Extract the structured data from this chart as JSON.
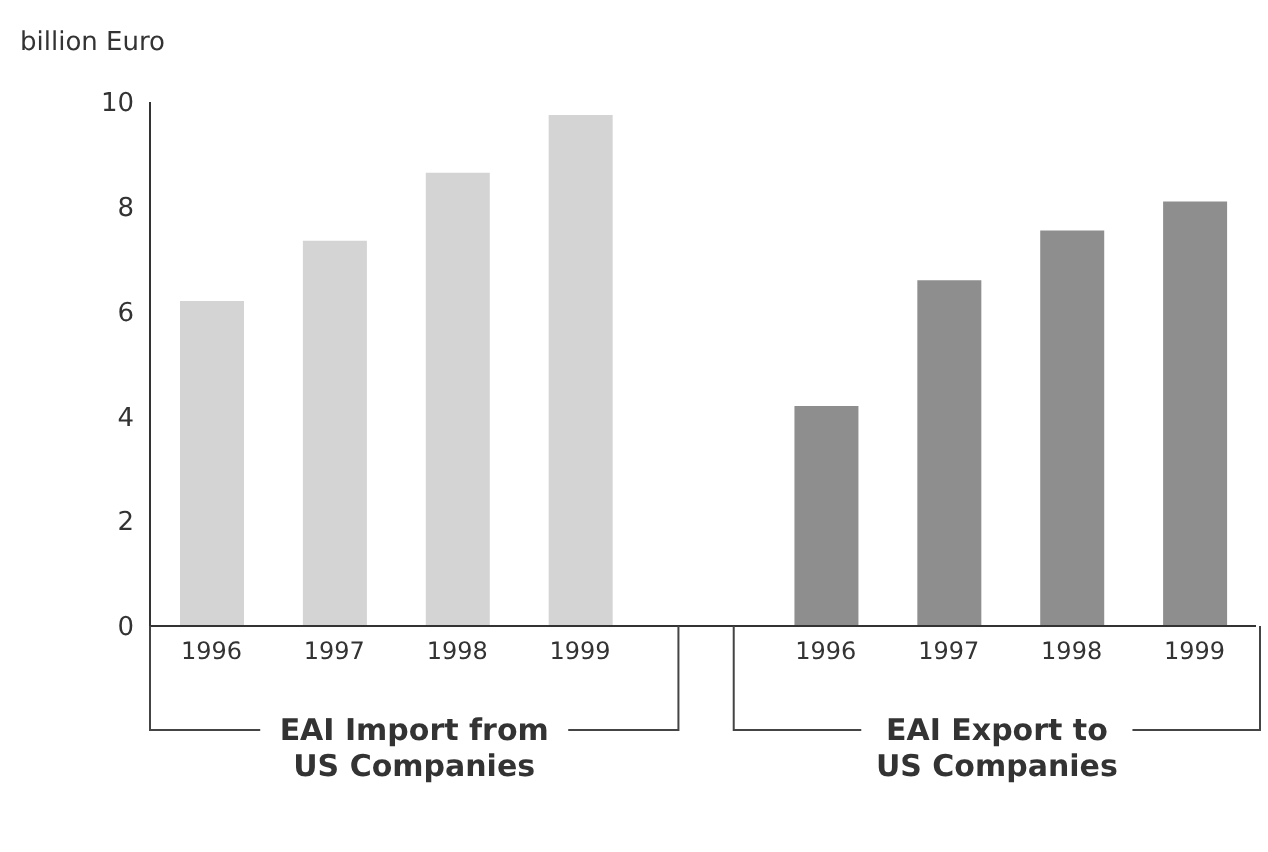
{
  "chart_data": {
    "type": "bar",
    "ylabel": "billion Euro",
    "categories": [
      "1996",
      "1997",
      "1998",
      "1999",
      null,
      "1996",
      "1997",
      "1998",
      "1999"
    ],
    "values": [
      6.2,
      7.35,
      8.65,
      9.75,
      null,
      4.2,
      6.6,
      7.55,
      8.1
    ],
    "colors": [
      "#d4d4d4",
      "#d4d4d4",
      "#d4d4d4",
      "#d4d4d4",
      null,
      "#8e8e8e",
      "#8e8e8e",
      "#8e8e8e",
      "#8e8e8e"
    ],
    "ylim": [
      0,
      10
    ],
    "yticks": [
      0,
      2,
      4,
      6,
      8,
      10
    ],
    "annotations": [
      "EAI Import from US Companies",
      "EAI Export to US Companies"
    ]
  }
}
